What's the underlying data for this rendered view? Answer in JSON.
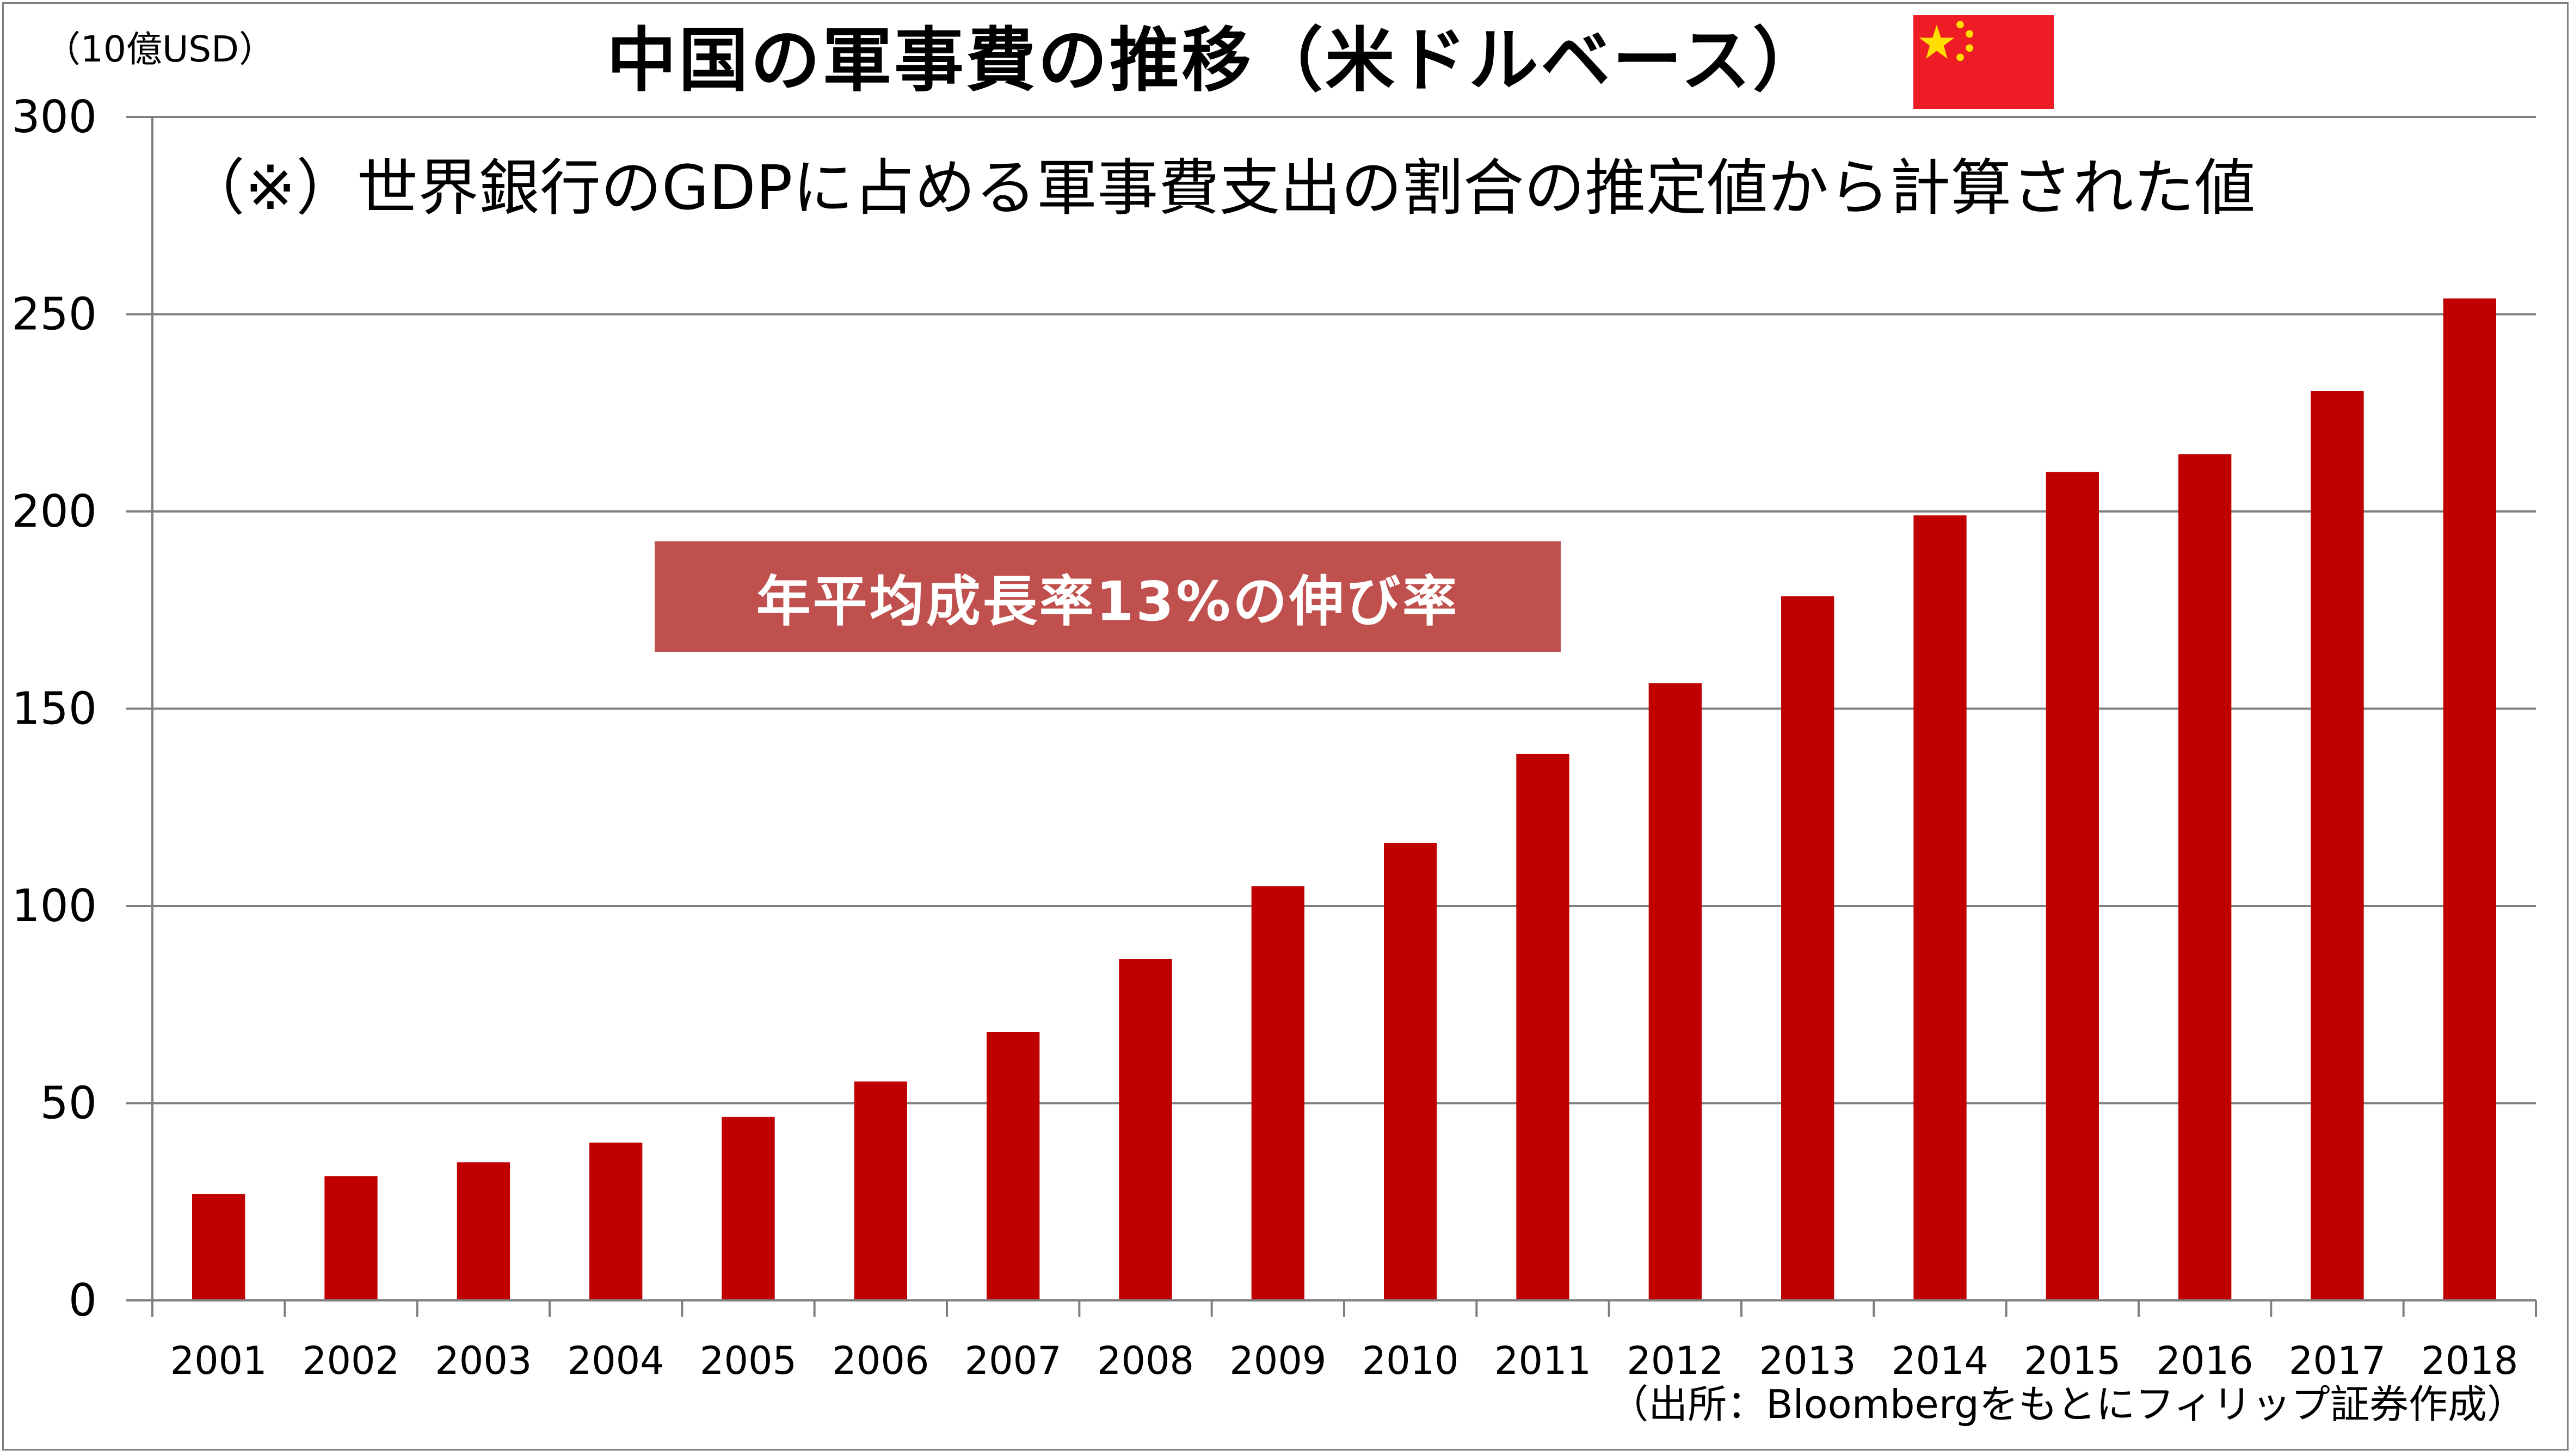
{
  "title": "中国の軍事費の推移（米ドルベース）",
  "unit_label": "（10億USD）",
  "note": "（※）世界銀行のGDPに占める軍事費支出の割合の推定値から計算された値",
  "callout": "年平均成長率13%の伸び率",
  "source": "（出所：Bloombergをもとにフィリップ証券作成）",
  "flag_icon": "china-flag-icon",
  "colors": {
    "bar": "#c00000",
    "callout_bg": "#c0504d",
    "gridline": "#7f7f7f",
    "flag_red": "#ee1c25",
    "flag_star": "#ffde00"
  },
  "chart_data": {
    "type": "bar",
    "categories": [
      "2001",
      "2002",
      "2003",
      "2004",
      "2005",
      "2006",
      "2007",
      "2008",
      "2009",
      "2010",
      "2011",
      "2012",
      "2013",
      "2014",
      "2015",
      "2016",
      "2017",
      "2018"
    ],
    "values": [
      27,
      31.5,
      35,
      40,
      46.5,
      55.5,
      68,
      86.5,
      105,
      116,
      138.5,
      156.5,
      178.5,
      199,
      210,
      214.5,
      230.5,
      254
    ],
    "ylim": [
      0,
      300
    ],
    "yticks": [
      0,
      50,
      100,
      150,
      200,
      250,
      300
    ],
    "grid": true,
    "legend": "none"
  }
}
